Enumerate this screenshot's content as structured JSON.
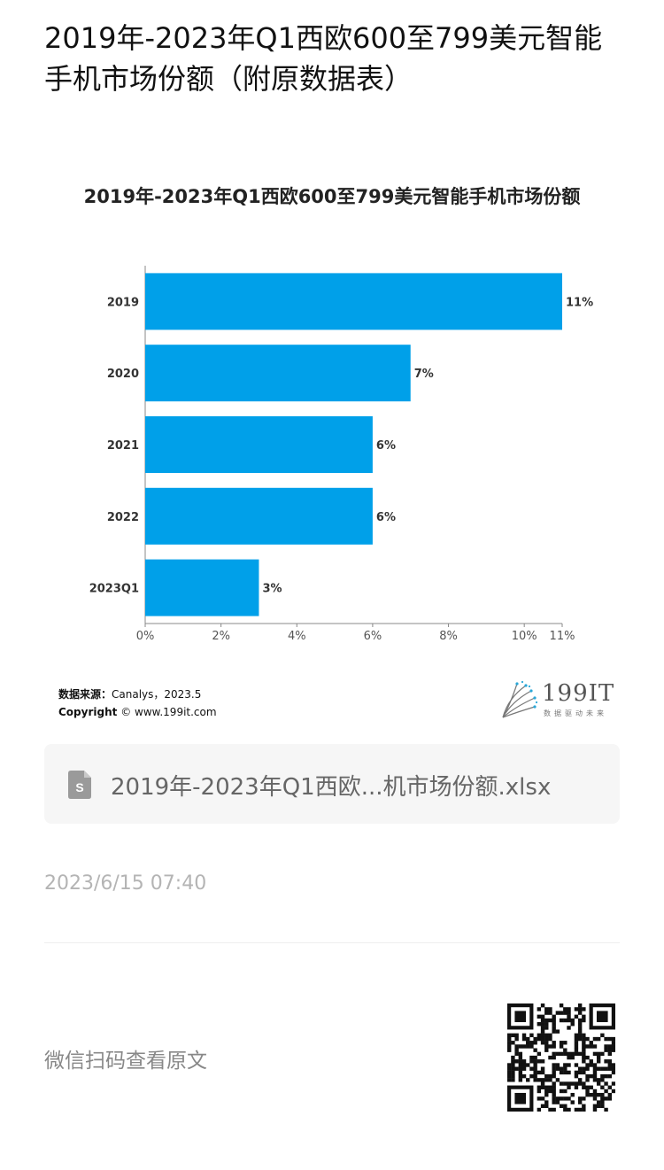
{
  "page": {
    "title": "2019年-2023年Q1西欧600至799美元智能手机市场份额（附原数据表）"
  },
  "chart_data": {
    "type": "bar",
    "orientation": "horizontal",
    "title": "2019年-2023年Q1西欧600至799美元智能手机市场份额",
    "categories": [
      "2019",
      "2020",
      "2021",
      "2022",
      "2023Q1"
    ],
    "values": [
      11,
      7,
      6,
      6,
      3
    ],
    "value_labels": [
      "11%",
      "7%",
      "6%",
      "6%",
      "3%"
    ],
    "x_ticks": [
      0,
      2,
      4,
      6,
      8,
      10,
      11
    ],
    "x_tick_labels": [
      "0%",
      "2%",
      "4%",
      "6%",
      "8%",
      "10%",
      "11%"
    ],
    "xlim": [
      0,
      11
    ],
    "grid": false,
    "bar_color": "#00a0e9"
  },
  "source": {
    "label": "数据来源：",
    "value": "Canalys，2023.5",
    "copyright_label": "Copyright",
    "copyright_value": "© www.199it.com"
  },
  "logo": {
    "text": "199IT",
    "subtitle": "数据驱动未来"
  },
  "file": {
    "icon": "spreadsheet-file-icon",
    "name": "2019年-2023年Q1西欧...机市场份额.xlsx"
  },
  "timestamp": "2023/6/15 07:40",
  "wechat_hint": "微信扫码查看原文",
  "qr_icon": "qr-code-icon"
}
